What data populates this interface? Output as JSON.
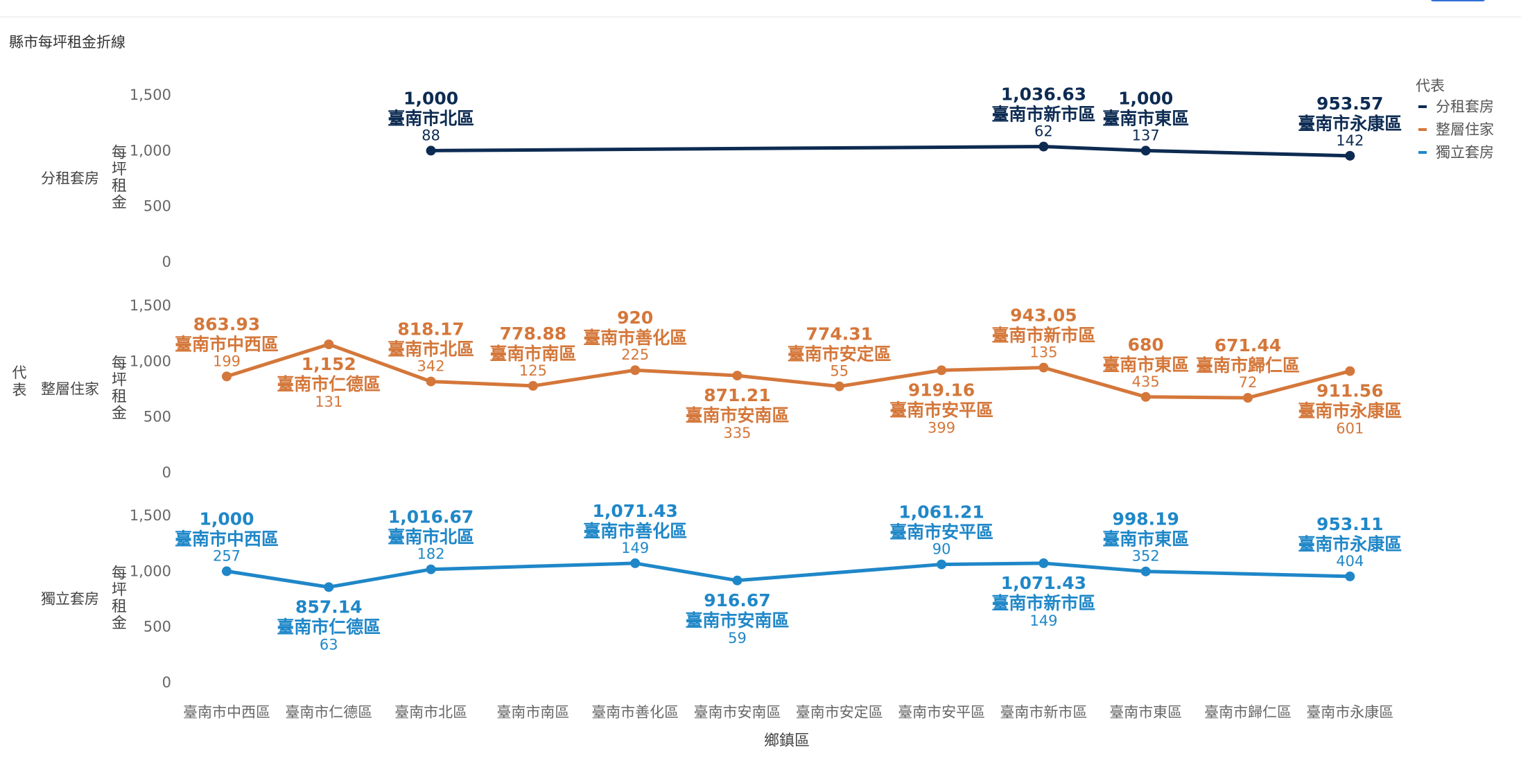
{
  "page_title": "縣市每坪租金折線",
  "chart_data": {
    "type": "line",
    "title": "縣市每坪租金折線",
    "xlabel": "鄉鎮區",
    "ylabel": "每坪租金",
    "facet_label": "代表",
    "ylim": [
      0,
      1500
    ],
    "yticks": [
      "0",
      "500",
      "1,000",
      "1,500"
    ],
    "categories": [
      "臺南市中西區",
      "臺南市仁德區",
      "臺南市北區",
      "臺南市南區",
      "臺南市善化區",
      "臺南市安南區",
      "臺南市安定區",
      "臺南市安平區",
      "臺南市新市區",
      "臺南市東區",
      "臺南市歸仁區",
      "臺南市永康區"
    ],
    "legend": {
      "title": "代表",
      "position": "top-right"
    },
    "grid": false,
    "series": [
      {
        "name": "分租套房",
        "color": "#0d2b52",
        "points": [
          {
            "category": "臺南市北區",
            "value": 1000,
            "label": "1,000",
            "count": "88",
            "pos": "above"
          },
          {
            "category": "臺南市新市區",
            "value": 1036.63,
            "label": "1,036.63",
            "count": "62",
            "pos": "above"
          },
          {
            "category": "臺南市東區",
            "value": 1000,
            "label": "1,000",
            "count": "137",
            "pos": "above"
          },
          {
            "category": "臺南市永康區",
            "value": 953.57,
            "label": "953.57",
            "count": "142",
            "pos": "above"
          }
        ]
      },
      {
        "name": "整層住家",
        "color": "#d4773a",
        "points": [
          {
            "category": "臺南市中西區",
            "value": 863.93,
            "label": "863.93",
            "count": "199",
            "pos": "above"
          },
          {
            "category": "臺南市仁德區",
            "value": 1152,
            "label": "1,152",
            "count": "131",
            "pos": "below"
          },
          {
            "category": "臺南市北區",
            "value": 818.17,
            "label": "818.17",
            "count": "342",
            "pos": "above"
          },
          {
            "category": "臺南市南區",
            "value": 778.88,
            "label": "778.88",
            "count": "125",
            "pos": "above"
          },
          {
            "category": "臺南市善化區",
            "value": 920,
            "label": "920",
            "count": "225",
            "pos": "above"
          },
          {
            "category": "臺南市安南區",
            "value": 871.21,
            "label": "871.21",
            "count": "335",
            "pos": "below"
          },
          {
            "category": "臺南市安定區",
            "value": 774.31,
            "label": "774.31",
            "count": "55",
            "pos": "above"
          },
          {
            "category": "臺南市安平區",
            "value": 919.16,
            "label": "919.16",
            "count": "399",
            "pos": "below"
          },
          {
            "category": "臺南市新市區",
            "value": 943.05,
            "label": "943.05",
            "count": "135",
            "pos": "above"
          },
          {
            "category": "臺南市東區",
            "value": 680,
            "label": "680",
            "count": "435",
            "pos": "above"
          },
          {
            "category": "臺南市歸仁區",
            "value": 671.44,
            "label": "671.44",
            "count": "72",
            "pos": "above"
          },
          {
            "category": "臺南市永康區",
            "value": 911.56,
            "label": "911.56",
            "count": "601",
            "pos": "below"
          }
        ]
      },
      {
        "name": "獨立套房",
        "color": "#1f87c8",
        "points": [
          {
            "category": "臺南市中西區",
            "value": 1000,
            "label": "1,000",
            "count": "257",
            "pos": "above"
          },
          {
            "category": "臺南市仁德區",
            "value": 857.14,
            "label": "857.14",
            "count": "63",
            "pos": "below"
          },
          {
            "category": "臺南市北區",
            "value": 1016.67,
            "label": "1,016.67",
            "count": "182",
            "pos": "above"
          },
          {
            "category": "臺南市善化區",
            "value": 1071.43,
            "label": "1,071.43",
            "count": "149",
            "pos": "above"
          },
          {
            "category": "臺南市安南區",
            "value": 916.67,
            "label": "916.67",
            "count": "59",
            "pos": "below"
          },
          {
            "category": "臺南市安平區",
            "value": 1061.21,
            "label": "1,061.21",
            "count": "90",
            "pos": "above"
          },
          {
            "category": "臺南市新市區",
            "value": 1071.43,
            "label": "1,071.43",
            "count": "149",
            "pos": "below"
          },
          {
            "category": "臺南市東區",
            "value": 998.19,
            "label": "998.19",
            "count": "352",
            "pos": "above"
          },
          {
            "category": "臺南市永康區",
            "value": 953.11,
            "label": "953.11",
            "count": "404",
            "pos": "above"
          }
        ]
      }
    ]
  }
}
